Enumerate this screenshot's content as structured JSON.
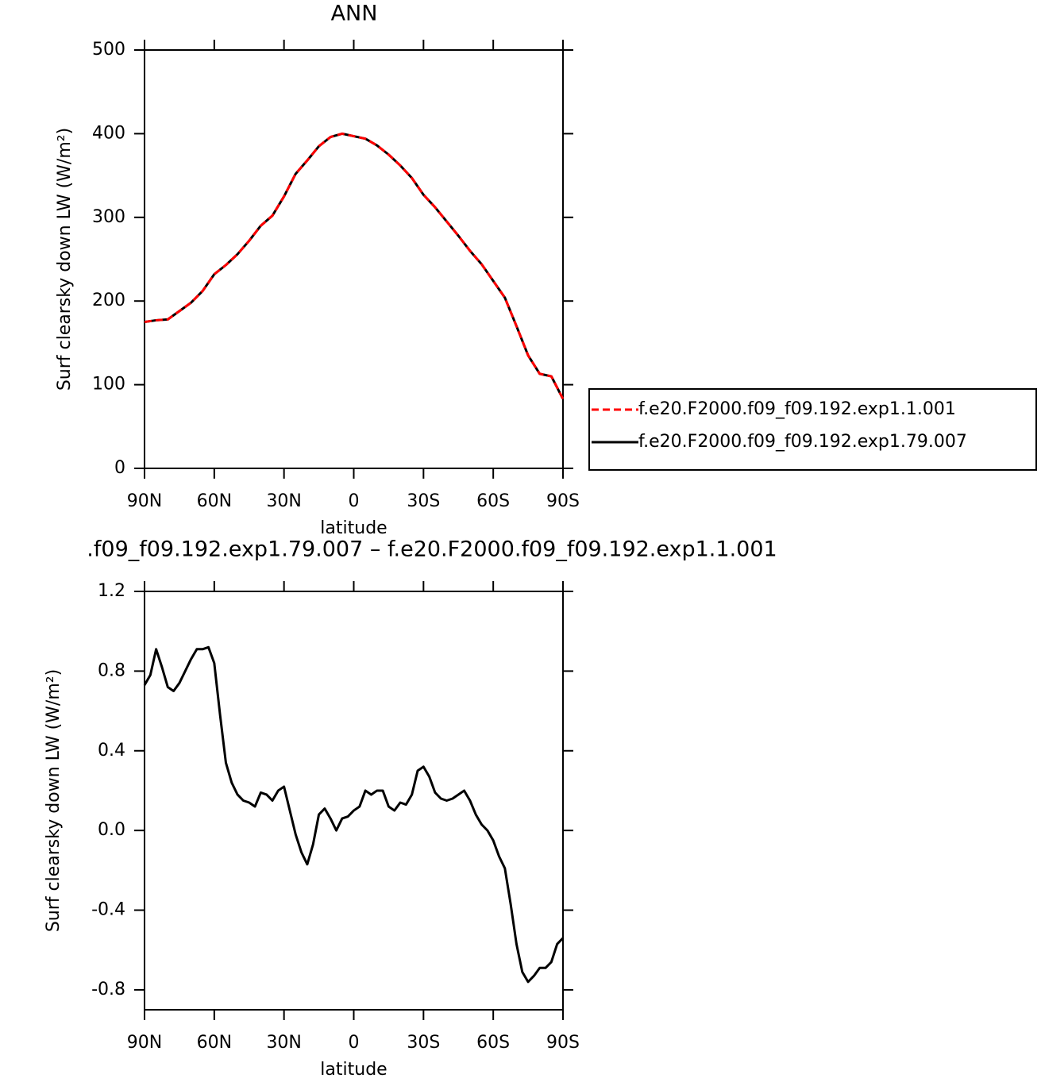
{
  "chart_data": [
    {
      "type": "line",
      "title": "ANN",
      "xlabel": "latitude",
      "ylabel": "Surf clearsky down LW (W/m²)",
      "x": [
        90,
        85,
        80,
        75,
        70,
        65,
        60,
        55,
        50,
        45,
        40,
        35,
        30,
        25,
        20,
        15,
        10,
        5,
        0,
        -5,
        -10,
        -15,
        -20,
        -25,
        -30,
        -35,
        -40,
        -45,
        -50,
        -55,
        -60,
        -65,
        -70,
        -75,
        -80,
        -85,
        -90
      ],
      "series": [
        {
          "name": "f.e20.F2000.f09_f09.192.exp1.1.001",
          "color": "#ff0000",
          "line_style": "dashed",
          "values": [
            175,
            177,
            178,
            188,
            198,
            212,
            232,
            243,
            256,
            272,
            290,
            302,
            325,
            352,
            368,
            385,
            396,
            400,
            397,
            394,
            386,
            375,
            362,
            347,
            327,
            312,
            295,
            278,
            260,
            244,
            224,
            204,
            170,
            135,
            113,
            110,
            83
          ]
        },
        {
          "name": "f.e20.F2000.f09_f09.192.exp1.79.007",
          "color": "#000000",
          "line_style": "solid",
          "values": [
            175,
            177,
            178,
            188,
            198,
            212,
            232,
            243,
            256,
            272,
            290,
            302,
            325,
            352,
            368,
            385,
            396,
            400,
            397,
            394,
            386,
            375,
            362,
            347,
            327,
            312,
            295,
            278,
            260,
            244,
            224,
            204,
            170,
            135,
            113,
            110,
            83
          ]
        }
      ],
      "xlim": [
        90,
        -90
      ],
      "xticks": [
        {
          "value": 90,
          "label": "90N"
        },
        {
          "value": 60,
          "label": "60N"
        },
        {
          "value": 30,
          "label": "30N"
        },
        0,
        {
          "value": -30,
          "label": "30S"
        },
        {
          "value": -60,
          "label": "60S"
        },
        {
          "value": -90,
          "label": "90S"
        }
      ],
      "ylim": [
        0,
        500
      ],
      "yticks": [
        0,
        100,
        200,
        300,
        400,
        500
      ],
      "legend": "right"
    },
    {
      "type": "line",
      "title": ".f09_f09.192.exp1.79.007 – f.e20.F2000.f09_f09.192.exp1.1.001",
      "xlabel": "latitude",
      "ylabel": "Surf clearsky down LW (W/m²)",
      "x": [
        90,
        87.5,
        85,
        82.5,
        80,
        77.5,
        75,
        72.5,
        70,
        67.5,
        65,
        62.5,
        60,
        57.5,
        55,
        52.5,
        50,
        47.5,
        45,
        42.5,
        40,
        37.5,
        35,
        32.5,
        30,
        27.5,
        25,
        22.5,
        20,
        17.5,
        15,
        12.5,
        10,
        7.5,
        5,
        2.5,
        0,
        -2.5,
        -5,
        -7.5,
        -10,
        -12.5,
        -15,
        -17.5,
        -20,
        -22.5,
        -25,
        -27.5,
        -30,
        -32.5,
        -35,
        -37.5,
        -40,
        -42.5,
        -45,
        -47.5,
        -50,
        -52.5,
        -55,
        -57.5,
        -60,
        -62.5,
        -65,
        -67.5,
        -70,
        -72.5,
        -75,
        -77.5,
        -80,
        -82.5,
        -85,
        -87.5,
        -90
      ],
      "series": [
        {
          "color": "#000000",
          "line_style": "solid",
          "values": [
            0.73,
            0.78,
            0.91,
            0.82,
            0.72,
            0.7,
            0.74,
            0.8,
            0.86,
            0.91,
            0.91,
            0.92,
            0.84,
            0.58,
            0.34,
            0.24,
            0.18,
            0.15,
            0.14,
            0.12,
            0.19,
            0.18,
            0.15,
            0.2,
            0.22,
            0.1,
            -0.02,
            -0.11,
            -0.17,
            -0.07,
            0.08,
            0.11,
            0.06,
            0.0,
            0.06,
            0.07,
            0.1,
            0.12,
            0.2,
            0.18,
            0.2,
            0.2,
            0.12,
            0.1,
            0.14,
            0.13,
            0.18,
            0.3,
            0.32,
            0.27,
            0.19,
            0.16,
            0.15,
            0.16,
            0.18,
            0.2,
            0.15,
            0.08,
            0.03,
            0.0,
            -0.05,
            -0.13,
            -0.19,
            -0.37,
            -0.57,
            -0.71,
            -0.76,
            -0.73,
            -0.69,
            -0.69,
            -0.66,
            -0.57,
            -0.54
          ]
        }
      ],
      "xlim": [
        90,
        -90
      ],
      "xticks": [
        {
          "value": 90,
          "label": "90N"
        },
        {
          "value": 60,
          "label": "60N"
        },
        {
          "value": 30,
          "label": "30N"
        },
        0,
        {
          "value": -30,
          "label": "30S"
        },
        {
          "value": -60,
          "label": "60S"
        },
        {
          "value": -90,
          "label": "90S"
        }
      ],
      "ylim": [
        -0.9,
        1.2
      ],
      "yticks": [
        -0.8,
        -0.4,
        {
          "value": 0,
          "label": "0.0"
        },
        0.4,
        0.8,
        1.2
      ]
    }
  ]
}
